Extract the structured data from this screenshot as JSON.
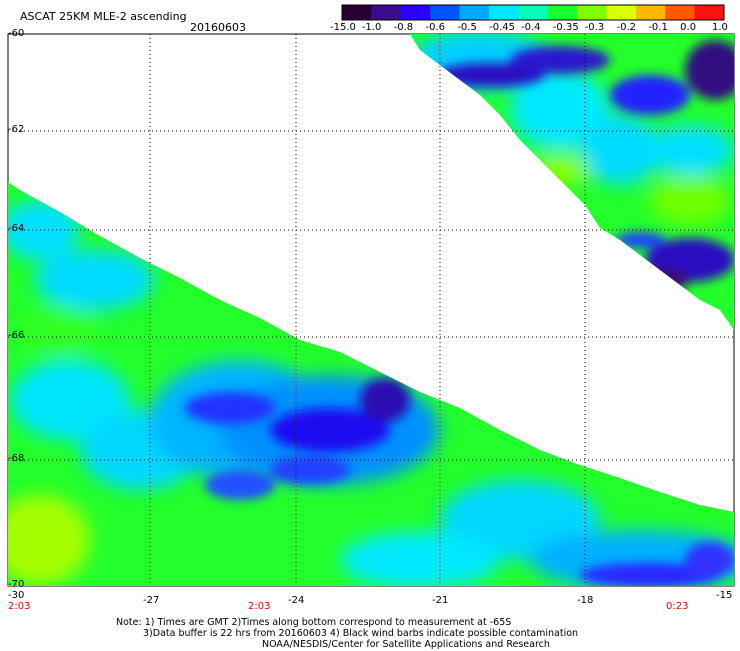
{
  "header": {
    "title": "ASCAT 25KM MLE-2 ascending",
    "date": "20160603"
  },
  "colorbar": {
    "labels": [
      "-15.0",
      "-1.0",
      "-0.8",
      "-0.6",
      "-0.5",
      "-0.45",
      "-0.4",
      "-0.35",
      "-0.3",
      "-0.2",
      "-0.1",
      "0.0",
      "1.0"
    ],
    "colors": [
      "#2a0033",
      "#3c0a8c",
      "#2a00ff",
      "#0055ff",
      "#00a8ff",
      "#00e8ff",
      "#00ffb8",
      "#18ff30",
      "#80ff00",
      "#dcff00",
      "#ffb800",
      "#ff5a00",
      "#ff1010"
    ]
  },
  "map": {
    "lat_labels": [
      "-60",
      "-62",
      "-64",
      "-66",
      "-68",
      "-70"
    ],
    "lon_labels": [
      "-30",
      "-27",
      "-24",
      "-21",
      "-18",
      "-15"
    ],
    "time_labels": [
      {
        "text": "2:03",
        "lon": -30
      },
      {
        "text": "2:03",
        "lon": -25
      },
      {
        "text": "0:23",
        "lon": -16
      }
    ]
  },
  "notes": [
    "Note: 1) Times are GMT 2)Times along bottom correspond to measurement at -65S",
    "3)Data buffer is 22 hrs from 20160603 4) Black wind barbs indicate possible contamination",
    "NOAA/NESDIS/Center for Satellite Applications and Research"
  ]
}
